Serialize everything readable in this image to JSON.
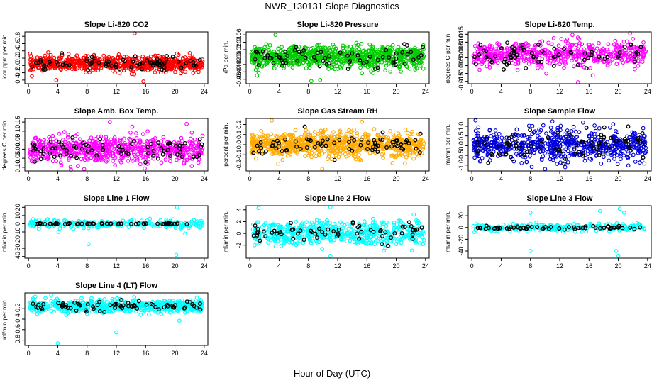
{
  "figure": {
    "title": "NWR_130131  Slope Diagnostics",
    "xlabel": "Hour of Day (UTC)"
  },
  "chart_data": [
    {
      "type": "scatter",
      "title": "Slope Li-820 CO2",
      "ylabel": "Licor ppm per min.",
      "xlim": [
        -0.5,
        24.5
      ],
      "ylim": [
        -0.5,
        0.92
      ],
      "xticks": [
        "0",
        "4",
        "8",
        "12",
        "16",
        "20",
        "24"
      ],
      "yticks": [
        -0.4,
        -0.2,
        0.0,
        0.2,
        0.4,
        0.6,
        0.8
      ],
      "ytick_labels": [
        "-0.4",
        "-0.2",
        "0.0",
        "0.2",
        "0.4",
        "0.6",
        "0.8"
      ],
      "color": "#ff0000",
      "spread": {
        "center": 0.05,
        "sd": 0.1,
        "n": 700
      },
      "outliers": [
        [
          14.5,
          0.9
        ],
        [
          3.8,
          -0.4
        ],
        [
          15.7,
          -0.44
        ]
      ],
      "overlay_color": "#000000",
      "overlay": {
        "n": 75
      }
    },
    {
      "type": "scatter",
      "title": "Slope Li-820 Pressure",
      "ylabel": "kPa per min.",
      "xlim": [
        -0.5,
        24.5
      ],
      "ylim": [
        -0.072,
        0.068
      ],
      "xticks": [
        "0",
        "4",
        "8",
        "12",
        "16",
        "20",
        "24"
      ],
      "yticks": [
        -0.06,
        -0.04,
        -0.02,
        0.0,
        0.02,
        0.04,
        0.06
      ],
      "ytick_labels": [
        "-0.06",
        "-0.04",
        "-0.02",
        "0.00",
        "0.02",
        "0.04",
        "0.06"
      ],
      "color": "#00cc00",
      "spread": {
        "center": 0.0,
        "sd": 0.015,
        "n": 800
      },
      "outliers": [
        [
          3.5,
          0.06
        ],
        [
          8.4,
          -0.065
        ],
        [
          9.6,
          -0.062
        ]
      ],
      "overlay_color": "#000000",
      "overlay": {
        "n": 70
      }
    },
    {
      "type": "scatter",
      "title": "Slope Li-820 Temp.",
      "ylabel": "degrees C per min.",
      "xlim": [
        -0.5,
        24.5
      ],
      "ylim": [
        -0.0165,
        0.0165
      ],
      "xticks": [
        "0",
        "4",
        "8",
        "12",
        "16",
        "20",
        "24"
      ],
      "yticks": [
        -0.015,
        -0.01,
        -0.005,
        0.0,
        0.005,
        0.01,
        0.015
      ],
      "ytick_labels": [
        "-0.015",
        "-0.010",
        "-0.005",
        "0.000",
        "0.005",
        "0.010",
        "0.015"
      ],
      "color": "#ff00ff",
      "spread": {
        "center": 0.002,
        "sd": 0.004,
        "n": 550
      },
      "outliers": [
        [
          14.5,
          -0.016
        ],
        [
          21.6,
          0.016
        ]
      ],
      "overlay_color": "#000000",
      "overlay": {
        "n": 70
      }
    },
    {
      "type": "scatter",
      "title": "Slope Amb. Box Temp.",
      "ylabel": "degrees C per min.",
      "xlim": [
        -0.5,
        24.5
      ],
      "ylim": [
        -0.12,
        0.17
      ],
      "xticks": [
        "0",
        "4",
        "8",
        "12",
        "16",
        "20",
        "24"
      ],
      "yticks": [
        -0.1,
        -0.05,
        0.0,
        0.05,
        0.1,
        0.15
      ],
      "ytick_labels": [
        "-0.10",
        "-0.05",
        "0.00",
        "0.05",
        "0.10",
        "0.15"
      ],
      "color": "#ff00ff",
      "spread": {
        "center": 0.0,
        "sd": 0.035,
        "n": 650
      },
      "outliers": [
        [
          11.1,
          0.15
        ],
        [
          21.6,
          0.14
        ],
        [
          7.6,
          -0.11
        ]
      ],
      "overlay_color": "#000000",
      "overlay": {
        "n": 75
      }
    },
    {
      "type": "scatter",
      "title": "Slope Gas Stream RH",
      "ylabel": "percent per min.",
      "xlim": [
        -0.5,
        24.5
      ],
      "ylim": [
        -0.26,
        0.26
      ],
      "xticks": [
        "0",
        "4",
        "8",
        "12",
        "16",
        "20",
        "24"
      ],
      "yticks": [
        -0.2,
        -0.1,
        0.0,
        0.1,
        0.2
      ],
      "ytick_labels": [
        "-0.2",
        "-0.1",
        "0.0",
        "0.1",
        "0.2"
      ],
      "color": "#ffaa00",
      "spread": {
        "center": 0.0,
        "sd": 0.06,
        "n": 800
      },
      "outliers": [
        [
          3.0,
          0.24
        ],
        [
          9.9,
          -0.24
        ]
      ],
      "overlay_color": "#000000",
      "overlay": {
        "n": 75
      }
    },
    {
      "type": "scatter",
      "title": "Slope Sample Flow",
      "ylabel": "ml/min per min.",
      "xlim": [
        -0.5,
        24.5
      ],
      "ylim": [
        -1.3,
        1.4
      ],
      "xticks": [
        "0",
        "4",
        "8",
        "12",
        "16",
        "20",
        "24"
      ],
      "yticks": [
        -1.0,
        -0.5,
        0.0,
        0.5,
        1.0
      ],
      "ytick_labels": [
        "-1.0",
        "-0.5",
        "0.0",
        "0.5",
        "1.0"
      ],
      "color": "#0000dd",
      "spread": {
        "center": 0.0,
        "sd": 0.4,
        "n": 650
      },
      "outliers": [
        [
          0.5,
          1.3
        ],
        [
          11.0,
          1.25
        ],
        [
          10.0,
          -1.2
        ]
      ],
      "overlay_color": "#000000",
      "overlay": {
        "n": 75
      }
    },
    {
      "type": "scatter",
      "title": "Slope Line 1 Flow",
      "ylabel": "ml/min per min.",
      "xlim": [
        -0.5,
        24.5
      ],
      "ylim": [
        -42,
        22
      ],
      "xticks": [
        "0",
        "4",
        "8",
        "12",
        "16",
        "20",
        "24"
      ],
      "yticks": [
        -40,
        -30,
        -20,
        -10,
        0,
        10,
        20
      ],
      "ytick_labels": [
        "-40",
        "-30",
        "-20",
        "-10",
        "0",
        "10",
        "20"
      ],
      "color": "#00ffff",
      "spread": {
        "center": 0.0,
        "sd": 2.5,
        "n": 250
      },
      "outliers": [
        [
          20.3,
          20
        ],
        [
          20.2,
          -38
        ],
        [
          8.2,
          -25
        ],
        [
          4.1,
          -10
        ],
        [
          21.4,
          -12
        ]
      ],
      "overlay_color": "#000000",
      "overlay": {
        "n": 60,
        "sd": 0.3
      }
    },
    {
      "type": "scatter",
      "title": "Slope Line 2 Flow",
      "ylabel": "ml/min per min.",
      "xlim": [
        -0.5,
        24.5
      ],
      "ylim": [
        -4.2,
        4.7
      ],
      "xticks": [
        "0",
        "4",
        "8",
        "12",
        "16",
        "20",
        "24"
      ],
      "yticks": [
        -2,
        0,
        2,
        4
      ],
      "ytick_labels": [
        "-2",
        "0",
        "2",
        "4"
      ],
      "color": "#00ffff",
      "spread": {
        "center": 0.0,
        "sd": 1.0,
        "n": 550
      },
      "outliers": [
        [
          11.0,
          4.5
        ],
        [
          1.2,
          4.3
        ],
        [
          11.0,
          -3.8
        ],
        [
          22.4,
          3.2
        ]
      ],
      "overlay_color": "#000000",
      "overlay": {
        "n": 65
      }
    },
    {
      "type": "scatter",
      "title": "Slope Line 3 Flow",
      "ylabel": "ml/min per min.",
      "xlim": [
        -0.5,
        24.5
      ],
      "ylim": [
        -52,
        37
      ],
      "xticks": [
        "0",
        "4",
        "8",
        "12",
        "16",
        "20",
        "24"
      ],
      "yticks": [
        -40,
        -20,
        0,
        20
      ],
      "ytick_labels": [
        "-40",
        "-20",
        "0",
        "20"
      ],
      "color": "#00ffff",
      "spread": {
        "center": 0.0,
        "sd": 3.0,
        "n": 250
      },
      "outliers": [
        [
          20.0,
          -48
        ],
        [
          19.7,
          -40
        ],
        [
          8.0,
          -40
        ],
        [
          8.0,
          25
        ],
        [
          17.5,
          28
        ],
        [
          20.2,
          32
        ],
        [
          20.8,
          25
        ]
      ],
      "overlay_color": "#000000",
      "overlay": {
        "n": 60,
        "sd": 1.5
      }
    },
    {
      "type": "scatter",
      "title": "Slope Line 4 (LT) Flow",
      "ylabel": "ml/min per min.",
      "xlim": [
        -0.5,
        24.5
      ],
      "ylim": [
        -0.9,
        0.1
      ],
      "xticks": [
        "0",
        "4",
        "8",
        "12",
        "16",
        "20",
        "24"
      ],
      "yticks": [
        -0.8,
        -0.6,
        -0.4,
        -0.2
      ],
      "ytick_labels": [
        "-0.8",
        "-0.6",
        "-0.4",
        "-0.2"
      ],
      "color": "#00ffff",
      "spread": {
        "center": -0.15,
        "sd": 0.06,
        "n": 600
      },
      "outliers": [
        [
          4.0,
          -0.86
        ],
        [
          12.0,
          -0.65
        ],
        [
          20.6,
          -0.43
        ],
        [
          8.0,
          -0.3
        ],
        [
          1.2,
          -0.3
        ]
      ],
      "overlay_color": "#000000",
      "overlay": {
        "n": 70
      }
    }
  ]
}
